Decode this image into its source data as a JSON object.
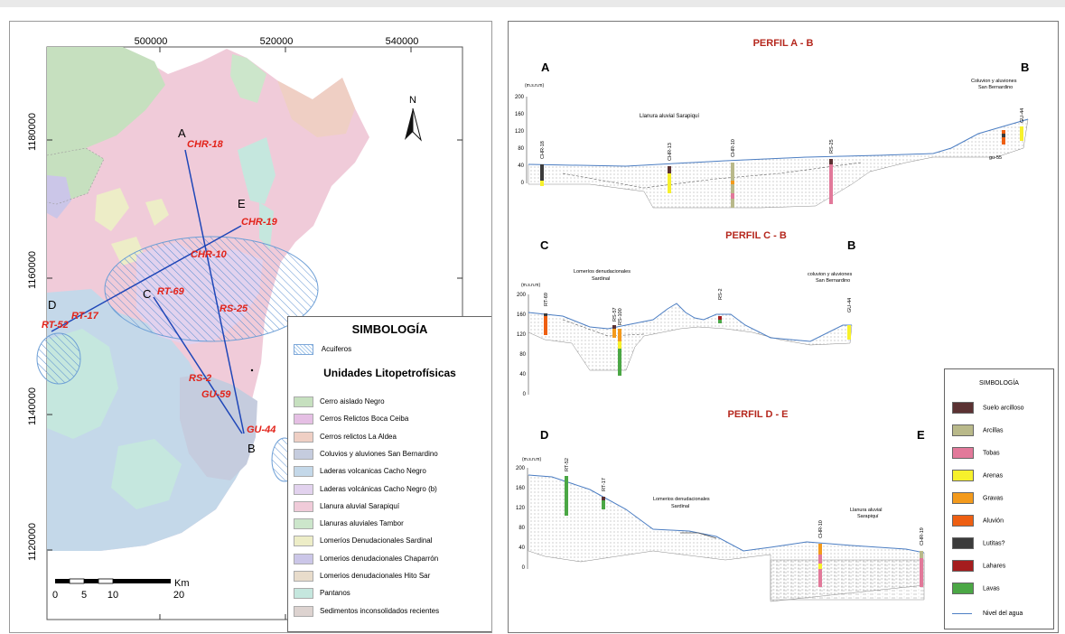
{
  "map": {
    "x_ticks": [
      "500000",
      "520000",
      "540000"
    ],
    "y_ticks": [
      "1180000",
      "1160000",
      "1140000",
      "1120000"
    ],
    "north": "N",
    "points": {
      "A": "A",
      "B": "B",
      "C": "C",
      "D": "D",
      "E": "E"
    },
    "wells": [
      "CHR-18",
      "CHR-19",
      "CHR-10",
      "RT-69",
      "RS-25",
      "RT-17",
      "RT-52",
      "RS-2",
      "GU-59",
      "GU-44"
    ],
    "scale": {
      "labels": [
        "0",
        "5",
        "10",
        "20"
      ],
      "unit": "Km"
    }
  },
  "legend": {
    "title": "SIMBOLOGÍA",
    "aquifer": {
      "label": "Acuiferos",
      "color": "#b9d6ee"
    },
    "units_title": "Unidades Litopetrofísicas",
    "units": [
      {
        "label": "Cerro aislado Negro",
        "color": "#c6e0bf"
      },
      {
        "label": "Cerros Relictos Boca Ceiba",
        "color": "#e5bfe4"
      },
      {
        "label": "Cerros relictos La Aldea",
        "color": "#efcfc4"
      },
      {
        "label": "Coluvios y aluviones San Bernardino",
        "color": "#c5ccde"
      },
      {
        "label": "Laderas volcanicas Cacho Negro",
        "color": "#c4d8e9"
      },
      {
        "label": "Laderas volcánicas Cacho Negro (b)",
        "color": "#e2d2ee"
      },
      {
        "label": "Llanura aluvial Sarapiquí",
        "color": "#f0cbd9"
      },
      {
        "label": "Llanuras aluviales Tambor",
        "color": "#cce6cb"
      },
      {
        "label": "Lomeríos Denudacionales Sardinal",
        "color": "#ededc7"
      },
      {
        "label": "Lomerios denudacionales Chaparrón",
        "color": "#cbc6e8"
      },
      {
        "label": "Lomerios denudacionales Hito Sar",
        "color": "#e8dccb"
      },
      {
        "label": "Pantanos",
        "color": "#c5e7de"
      },
      {
        "label": "Sedimentos inconsolidados recientes",
        "color": "#ddd3d0"
      }
    ]
  },
  "profiles": {
    "ab": {
      "title": "PERFIL A - B",
      "left": "A",
      "right": "B",
      "unit": "(m.s.n.m)",
      "yticks": [
        "200",
        "160",
        "120",
        "80",
        "40",
        "0"
      ],
      "notes": [
        "Llanura aluvial Sarapiquí",
        "Coluvion y aluviones",
        "San Bernardino"
      ],
      "wells": [
        "CHR-18",
        "CHR-13",
        "CHR-10",
        "RS-25",
        "GU-44",
        "gu-55"
      ]
    },
    "cb": {
      "title": "PERFIL C - B",
      "left": "C",
      "right": "B",
      "unit": "(m.s.n.m)",
      "yticks": [
        "200",
        "160",
        "120",
        "80",
        "40",
        "0"
      ],
      "notes": [
        "Lomeríos denudacionales",
        "Sardinal",
        "coluvion y aluviones",
        "San Bernardino"
      ],
      "wells": [
        "RT-69",
        "RS-57",
        "RS-100",
        "RS-2",
        "GU-44"
      ]
    },
    "de": {
      "title": "PERFIL D - E",
      "left": "D",
      "right": "E",
      "unit": "(m.s.n.m)",
      "yticks": [
        "200",
        "160",
        "120",
        "80",
        "40",
        "0"
      ],
      "notes": [
        "Lomerios denudacionales",
        "Sardinal",
        "Llanura aluvial",
        "Sarapiquí"
      ],
      "wells": [
        "RT-52",
        "RT-17",
        "CHR-10",
        "CHR-19"
      ]
    }
  },
  "lithology": {
    "title": "SIMBOLOGÍA",
    "items": [
      {
        "label": "Suelo arcilloso",
        "color": "#5b3233"
      },
      {
        "label": "Arcillas",
        "color": "#b9b98a"
      },
      {
        "label": "Tobas",
        "color": "#e2799a"
      },
      {
        "label": "Arenas",
        "color": "#f7f12c"
      },
      {
        "label": "Gravas",
        "color": "#f39a1c"
      },
      {
        "label": "Aluvión",
        "color": "#ee5f12"
      },
      {
        "label": "Lutitas?",
        "color": "#3b3b3b"
      },
      {
        "label": "Lahares",
        "color": "#a51d1e"
      },
      {
        "label": "Lavas",
        "color": "#4ba745"
      }
    ],
    "water_label": "Nivel del agua",
    "water_color": "#4d7fc4"
  }
}
